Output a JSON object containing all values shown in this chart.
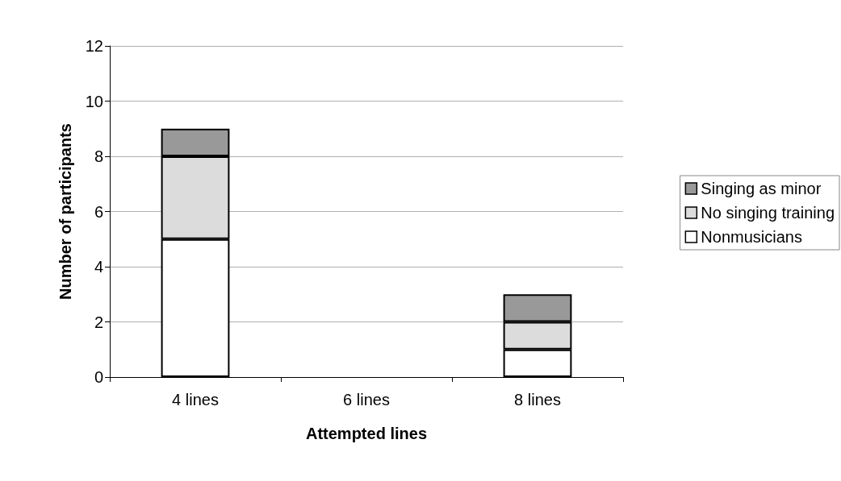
{
  "chart_data": {
    "type": "bar",
    "xlabel": "Attempted lines",
    "ylabel": "Number of participants",
    "categories": [
      "4 lines",
      "6 lines",
      "8 lines"
    ],
    "series": [
      {
        "name": "Nonmusicians",
        "color": "#ffffff",
        "values": [
          5,
          0,
          1
        ]
      },
      {
        "name": "No singing training",
        "color": "#dcdcdc",
        "values": [
          3,
          0,
          1
        ]
      },
      {
        "name": "Singing as minor",
        "color": "#999999",
        "values": [
          1,
          0,
          1
        ]
      }
    ],
    "stacked": true,
    "ylim": [
      0,
      12
    ],
    "yticks": [
      0,
      2,
      4,
      6,
      8,
      10,
      12
    ],
    "grid": "y",
    "legend": "right"
  }
}
